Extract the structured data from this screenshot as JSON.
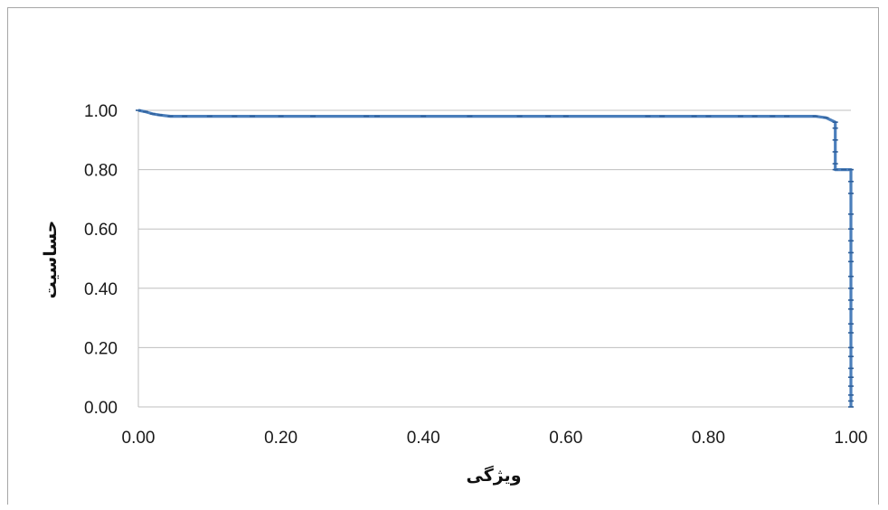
{
  "chart_data": {
    "type": "line",
    "xlabel": "ویژگی",
    "ylabel": "حساسیت",
    "xlim": [
      0,
      1
    ],
    "ylim": [
      0,
      1
    ],
    "xticks": [
      "0.00",
      "0.20",
      "0.40",
      "0.60",
      "0.80",
      "1.00"
    ],
    "yticks": [
      "0.00",
      "0.20",
      "0.40",
      "0.60",
      "0.80",
      "1.00"
    ],
    "grid": "horizontal",
    "legend": "none",
    "series": [
      {
        "color": "#4a7ebb",
        "points": [
          [
            0.0,
            1.0
          ],
          [
            0.01,
            0.995
          ],
          [
            0.02,
            0.988
          ],
          [
            0.03,
            0.984
          ],
          [
            0.045,
            0.98
          ],
          [
            0.065,
            0.98
          ],
          [
            0.1,
            0.98
          ],
          [
            0.135,
            0.98
          ],
          [
            0.16,
            0.98
          ],
          [
            0.2,
            0.98
          ],
          [
            0.245,
            0.98
          ],
          [
            0.32,
            0.98
          ],
          [
            0.335,
            0.98
          ],
          [
            0.4,
            0.98
          ],
          [
            0.465,
            0.98
          ],
          [
            0.535,
            0.98
          ],
          [
            0.575,
            0.98
          ],
          [
            0.6,
            0.98
          ],
          [
            0.715,
            0.98
          ],
          [
            0.735,
            0.98
          ],
          [
            0.78,
            0.98
          ],
          [
            0.8,
            0.98
          ],
          [
            0.845,
            0.98
          ],
          [
            0.865,
            0.98
          ],
          [
            0.89,
            0.98
          ],
          [
            0.91,
            0.98
          ],
          [
            0.95,
            0.98
          ],
          [
            0.965,
            0.975
          ],
          [
            0.978,
            0.96
          ],
          [
            0.978,
            0.94
          ],
          [
            0.978,
            0.9
          ],
          [
            0.978,
            0.86
          ],
          [
            0.978,
            0.82
          ],
          [
            0.978,
            0.8
          ],
          [
            0.99,
            0.8
          ],
          [
            1.0,
            0.8
          ],
          [
            1.0,
            0.76
          ],
          [
            1.0,
            0.72
          ],
          [
            1.0,
            0.65
          ],
          [
            1.0,
            0.6
          ],
          [
            1.0,
            0.56
          ],
          [
            1.0,
            0.52
          ],
          [
            1.0,
            0.49
          ],
          [
            1.0,
            0.44
          ],
          [
            1.0,
            0.4
          ],
          [
            1.0,
            0.36
          ],
          [
            1.0,
            0.33
          ],
          [
            1.0,
            0.28
          ],
          [
            1.0,
            0.25
          ],
          [
            1.0,
            0.2
          ],
          [
            1.0,
            0.17
          ],
          [
            1.0,
            0.13
          ],
          [
            1.0,
            0.1
          ],
          [
            1.0,
            0.07
          ],
          [
            1.0,
            0.04
          ],
          [
            1.0,
            0.02
          ],
          [
            1.0,
            0.0
          ]
        ]
      }
    ]
  }
}
